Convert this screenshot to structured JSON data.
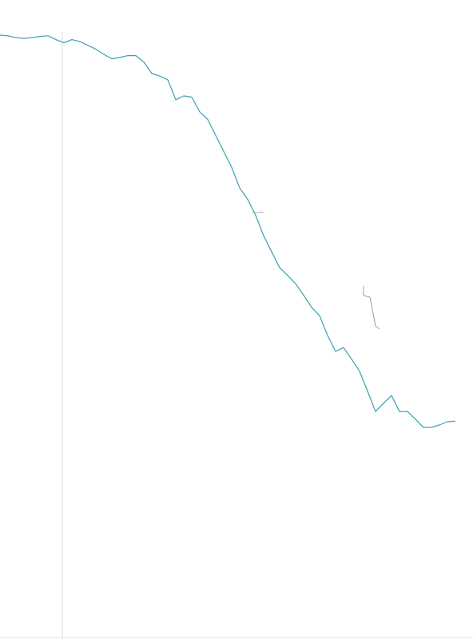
{
  "chart_data": {
    "type": "line",
    "x": [
      0,
      10,
      20,
      30,
      40,
      50,
      60,
      70,
      80,
      90,
      100,
      110,
      120,
      130,
      140,
      150,
      160,
      170,
      180,
      190,
      200,
      210,
      220,
      230,
      240,
      250,
      260,
      270,
      280,
      290,
      300,
      310,
      320,
      330,
      340,
      350,
      360,
      370,
      380,
      390,
      400,
      410,
      420,
      430,
      440,
      450,
      460,
      470,
      480,
      490,
      500,
      510,
      520,
      530,
      540,
      550,
      560,
      570
    ],
    "series": [
      {
        "color": "#3a9fb0",
        "values": [
          94.5,
          94.4,
          94.1,
          94,
          94.1,
          94.3,
          94.4,
          93.8,
          93.3,
          93.8,
          93.5,
          92.9,
          92.3,
          91.5,
          90.8,
          91,
          91.3,
          91.3,
          90.3,
          88.5,
          88.1,
          87.5,
          84.4,
          85,
          84.8,
          82.5,
          81.3,
          78.8,
          76.3,
          73.8,
          70.6,
          68.8,
          66.3,
          63.1,
          60.6,
          58.1,
          56.9,
          55.6,
          53.8,
          51.9,
          50.6,
          47.5,
          45,
          45.6,
          43.8,
          41.9,
          38.8,
          35.6,
          36.9,
          38.1,
          35.6,
          35.6,
          34.4,
          33.1,
          33.1,
          33.5,
          34,
          34.1
        ]
      }
    ],
    "xlim": [
      0,
      592
    ],
    "ylim": [
      0,
      100
    ]
  }
}
